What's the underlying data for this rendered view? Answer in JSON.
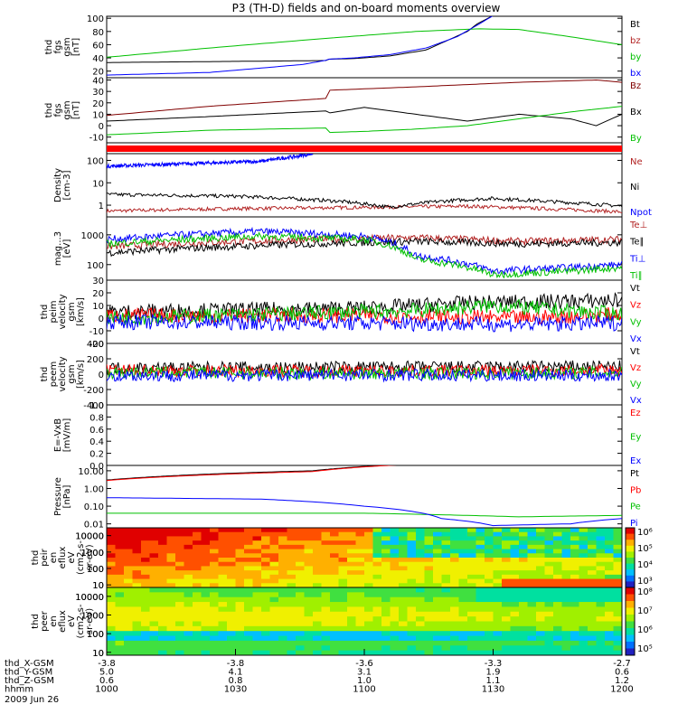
{
  "chart_data": {
    "type": "line",
    "title": "P3 (TH-D) fields and on-board moments overview",
    "date": "2009 Jun 26",
    "panels": [
      {
        "id": "fgs-b",
        "ylabel": [
          "thd",
          "fgs",
          "gsm",
          "[nT]"
        ],
        "yticks": [
          "20",
          "40",
          "60",
          "80",
          "100"
        ],
        "ylim": [
          10,
          103
        ],
        "scale": "linear",
        "series": [
          {
            "name": "Bt",
            "color": "#000000",
            "points": [
              [
                0,
                33
              ],
              [
                0.43,
                36
              ],
              [
                0.43,
                38
              ],
              [
                0.48,
                39
              ],
              [
                0.55,
                43
              ],
              [
                0.62,
                52
              ],
              [
                0.7,
                80
              ],
              [
                0.72,
                92
              ],
              [
                0.75,
                104
              ]
            ]
          },
          {
            "name": "bz",
            "color": "#b22222",
            "points": []
          },
          {
            "name": "by",
            "color": "#00c000",
            "points": [
              [
                0,
                41
              ],
              [
                0.2,
                55
              ],
              [
                0.4,
                68
              ],
              [
                0.6,
                80
              ],
              [
                0.72,
                84
              ],
              [
                0.8,
                83
              ],
              [
                0.9,
                72
              ],
              [
                1,
                60
              ]
            ]
          },
          {
            "name": "bx",
            "color": "#0000ff",
            "points": [
              [
                0,
                14
              ],
              [
                0.2,
                18
              ],
              [
                0.38,
                30
              ],
              [
                0.43,
                37
              ],
              [
                0.43,
                38
              ],
              [
                0.48,
                40
              ],
              [
                0.55,
                45
              ],
              [
                0.62,
                55
              ],
              [
                0.68,
                72
              ],
              [
                0.72,
                90
              ],
              [
                0.75,
                104
              ]
            ]
          }
        ],
        "legend_colors": [
          "#000000",
          "#b22222",
          "#00c000",
          "#0000ff"
        ]
      },
      {
        "id": "fgs-e",
        "ylabel": [
          "thd",
          "fgs",
          "gsm",
          "[nT]"
        ],
        "yticks": [
          "-10",
          "0",
          "10",
          "20",
          "30",
          "40"
        ],
        "ylim": [
          -15,
          42
        ],
        "scale": "linear",
        "series": [
          {
            "name": "Bz",
            "color": "#800000",
            "points": [
              [
                0,
                9
              ],
              [
                0.2,
                17
              ],
              [
                0.43,
                24
              ],
              [
                0.43,
                31
              ],
              [
                0.6,
                34
              ],
              [
                0.8,
                38
              ],
              [
                0.95,
                40
              ],
              [
                1,
                38
              ]
            ]
          },
          {
            "name": "Bx",
            "color": "#000000",
            "points": [
              [
                0,
                4
              ],
              [
                0.2,
                8
              ],
              [
                0.43,
                13
              ],
              [
                0.43,
                11
              ],
              [
                0.5,
                16
              ],
              [
                0.6,
                10
              ],
              [
                0.7,
                4
              ],
              [
                0.8,
                10
              ],
              [
                0.9,
                6
              ],
              [
                0.95,
                0
              ],
              [
                1,
                10
              ]
            ]
          },
          {
            "name": "By",
            "color": "#00c000",
            "points": [
              [
                0,
                -8
              ],
              [
                0.2,
                -4
              ],
              [
                0.43,
                -2
              ],
              [
                0.43,
                -6
              ],
              [
                0.5,
                -5
              ],
              [
                0.6,
                -3
              ],
              [
                0.7,
                0
              ],
              [
                0.8,
                6
              ],
              [
                0.9,
                12
              ],
              [
                1,
                17
              ]
            ]
          }
        ]
      },
      {
        "id": "bar",
        "ylabel": [],
        "yticks": [],
        "ylim": [
          0,
          1
        ],
        "scale": "linear",
        "series": []
      },
      {
        "id": "density",
        "ylabel": [
          "Density",
          "[cm-3]"
        ],
        "yticks": [
          "1",
          "10",
          "100"
        ],
        "ylim": [
          0.3,
          200
        ],
        "scale": "log",
        "series": [
          {
            "name": "Ne",
            "color": "#b22222",
            "points": [
              [
                0,
                0.55
              ],
              [
                0.25,
                0.7
              ],
              [
                0.5,
                0.8
              ],
              [
                0.7,
                0.9
              ],
              [
                0.85,
                0.7
              ],
              [
                1,
                0.5
              ]
            ]
          },
          {
            "name": "Ni",
            "color": "#000000",
            "points": [
              [
                0,
                3
              ],
              [
                0.25,
                2.5
              ],
              [
                0.45,
                1.5
              ],
              [
                0.55,
                0.8
              ],
              [
                0.65,
                1.5
              ],
              [
                0.75,
                2.0
              ],
              [
                0.85,
                1.5
              ],
              [
                1,
                0.9
              ]
            ]
          },
          {
            "name": "Npot",
            "color": "#0000ff",
            "points": [
              [
                0,
                55
              ],
              [
                0.15,
                70
              ],
              [
                0.3,
                90
              ],
              [
                0.37,
                150
              ],
              [
                0.4,
                200
              ]
            ]
          }
        ]
      },
      {
        "id": "temps",
        "ylabel": [
          "mag...3",
          "[eV]"
        ],
        "yticks": [
          "100",
          "1000"
        ],
        "ylim": [
          30,
          4000
        ],
        "scale": "log",
        "series": [
          {
            "name": "Te⊥",
            "color": "#b22222",
            "points": [
              [
                0,
                400
              ],
              [
                0.4,
                700
              ],
              [
                0.6,
                800
              ],
              [
                0.8,
                600
              ],
              [
                1,
                700
              ]
            ]
          },
          {
            "name": "Te∥",
            "color": "#000000",
            "points": [
              [
                0,
                250
              ],
              [
                0.4,
                500
              ],
              [
                0.6,
                600
              ],
              [
                0.8,
                500
              ],
              [
                1,
                550
              ]
            ]
          },
          {
            "name": "Ti⊥",
            "color": "#0000ff",
            "points": [
              [
                0,
                700
              ],
              [
                0.3,
                1300
              ],
              [
                0.5,
                900
              ],
              [
                0.6,
                200
              ],
              [
                0.75,
                60
              ],
              [
                0.9,
                80
              ],
              [
                1,
                100
              ]
            ]
          },
          {
            "name": "Ti∥",
            "color": "#00c000",
            "points": [
              [
                0,
                500
              ],
              [
                0.3,
                900
              ],
              [
                0.5,
                700
              ],
              [
                0.6,
                150
              ],
              [
                0.75,
                45
              ],
              [
                0.9,
                60
              ],
              [
                1,
                80
              ]
            ]
          }
        ]
      },
      {
        "id": "peim",
        "ylabel": [
          "thd",
          "peim",
          "velocity",
          "gsm",
          "[km/s]"
        ],
        "yticks": [
          "-20",
          "-10",
          "0",
          "10",
          "20",
          "30"
        ],
        "ylim": [
          -20,
          30
        ],
        "scale": "linear",
        "series": [
          {
            "name": "Vt",
            "color": "#000000",
            "points": [
              [
                0,
                5
              ],
              [
                0.5,
                8
              ],
              [
                0.7,
                12
              ],
              [
                1,
                14
              ]
            ]
          },
          {
            "name": "Vz",
            "color": "#ff0000",
            "points": [
              [
                0,
                2
              ],
              [
                0.5,
                2
              ],
              [
                0.8,
                0
              ],
              [
                1,
                3
              ]
            ]
          },
          {
            "name": "Vy",
            "color": "#00c000",
            "points": [
              [
                0,
                0
              ],
              [
                0.6,
                6
              ],
              [
                0.75,
                10
              ],
              [
                1,
                3
              ]
            ]
          },
          {
            "name": "Vx",
            "color": "#0000ff",
            "points": [
              [
                0,
                -3
              ],
              [
                0.5,
                -4
              ],
              [
                0.8,
                -5
              ],
              [
                1,
                -4
              ]
            ]
          }
        ]
      },
      {
        "id": "peem",
        "ylabel": [
          "thd",
          "peem",
          "velocity",
          "gsm",
          "[km/s]"
        ],
        "yticks": [
          "-400",
          "-200",
          "0",
          "200",
          "400"
        ],
        "ylim": [
          -400,
          400
        ],
        "scale": "linear",
        "series": [
          {
            "name": "Vt",
            "color": "#000000",
            "points": [
              [
                0,
                80
              ],
              [
                0.5,
                90
              ],
              [
                1,
                100
              ]
            ]
          },
          {
            "name": "Vz",
            "color": "#ff0000",
            "points": [
              [
                0,
                50
              ],
              [
                0.5,
                40
              ],
              [
                1,
                50
              ]
            ]
          },
          {
            "name": "Vy",
            "color": "#00c000",
            "points": [
              [
                0,
                20
              ],
              [
                0.5,
                10
              ],
              [
                1,
                20
              ]
            ]
          },
          {
            "name": "Vx",
            "color": "#0000ff",
            "points": [
              [
                0,
                -20
              ],
              [
                0.5,
                -10
              ],
              [
                1,
                -20
              ]
            ]
          }
        ]
      },
      {
        "id": "efield",
        "ylabel": [
          "E=-VxB",
          "[mV/m]"
        ],
        "yticks": [
          "0.0",
          "0.2",
          "0.4",
          "0.6",
          "0.8",
          "1.0"
        ],
        "ylim": [
          0,
          1
        ],
        "scale": "linear",
        "series": [
          {
            "name": "Ez",
            "color": "#ff0000",
            "points": []
          },
          {
            "name": "Ey",
            "color": "#00c000",
            "points": []
          },
          {
            "name": "Ex",
            "color": "#0000ff",
            "points": []
          }
        ]
      },
      {
        "id": "pressure",
        "ylabel": [
          "Pressure",
          "[nPa]"
        ],
        "yticks": [
          "0.01",
          "0.10",
          "1.00",
          "10.00"
        ],
        "ylim": [
          0.006,
          20
        ],
        "scale": "log",
        "series": [
          {
            "name": "Pt",
            "color": "#000000",
            "points": [
              [
                0,
                3
              ],
              [
                0.4,
                10
              ],
              [
                0.6,
                25
              ]
            ]
          },
          {
            "name": "Pb",
            "color": "#ff0000",
            "points": [
              [
                0,
                2.8
              ],
              [
                0.4,
                9
              ],
              [
                0.6,
                24
              ]
            ]
          },
          {
            "name": "Pe",
            "color": "#00c000",
            "points": [
              [
                0,
                0.04
              ],
              [
                0.5,
                0.04
              ],
              [
                0.8,
                0.025
              ],
              [
                1,
                0.03
              ]
            ]
          },
          {
            "name": "Pi",
            "color": "#0000ff",
            "points": [
              [
                0,
                0.3
              ],
              [
                0.3,
                0.25
              ],
              [
                0.5,
                0.1
              ],
              [
                0.65,
                0.02
              ],
              [
                0.75,
                0.008
              ],
              [
                0.9,
                0.01
              ],
              [
                1,
                0.02
              ]
            ]
          }
        ]
      },
      {
        "id": "peir-spec",
        "ylabel": [
          "thd",
          "peir",
          "en",
          "eflux",
          "eV",
          "(cm2-s-",
          "sr-eV)"
        ],
        "yticks": [
          "10",
          "100",
          "1000",
          "10000"
        ],
        "ylim": [
          7,
          30000
        ],
        "scale": "log",
        "colorbar": {
          "ticks": [
            "10³",
            "10⁴",
            "10⁵",
            "10⁶"
          ]
        }
      },
      {
        "id": "peer-spec",
        "ylabel": [
          "thd",
          "peer",
          "en",
          "eflux",
          "eV",
          "(cm2-s-",
          "sr-eV)"
        ],
        "yticks": [
          "10",
          "100",
          "1000",
          "10000"
        ],
        "ylim": [
          7,
          30000
        ],
        "scale": "log",
        "colorbar": {
          "ticks": [
            "10⁵",
            "10⁶",
            "10⁷",
            "10⁸"
          ]
        }
      }
    ],
    "xaxis": {
      "rows": [
        {
          "label": "thd_X-GSM",
          "values": [
            "-3.8",
            "-3.8",
            "-3.6",
            "-3.3",
            "-2.7"
          ]
        },
        {
          "label": "thd_Y-GSM",
          "values": [
            "5.0",
            "4.1",
            "3.1",
            "1.9",
            "0.6"
          ]
        },
        {
          "label": "thd_Z-GSM",
          "values": [
            "0.6",
            "0.8",
            "1.0",
            "1.1",
            "1.2"
          ]
        },
        {
          "label": "hhmm",
          "values": [
            "1000",
            "1030",
            "1100",
            "1130",
            "1200"
          ]
        }
      ]
    }
  }
}
